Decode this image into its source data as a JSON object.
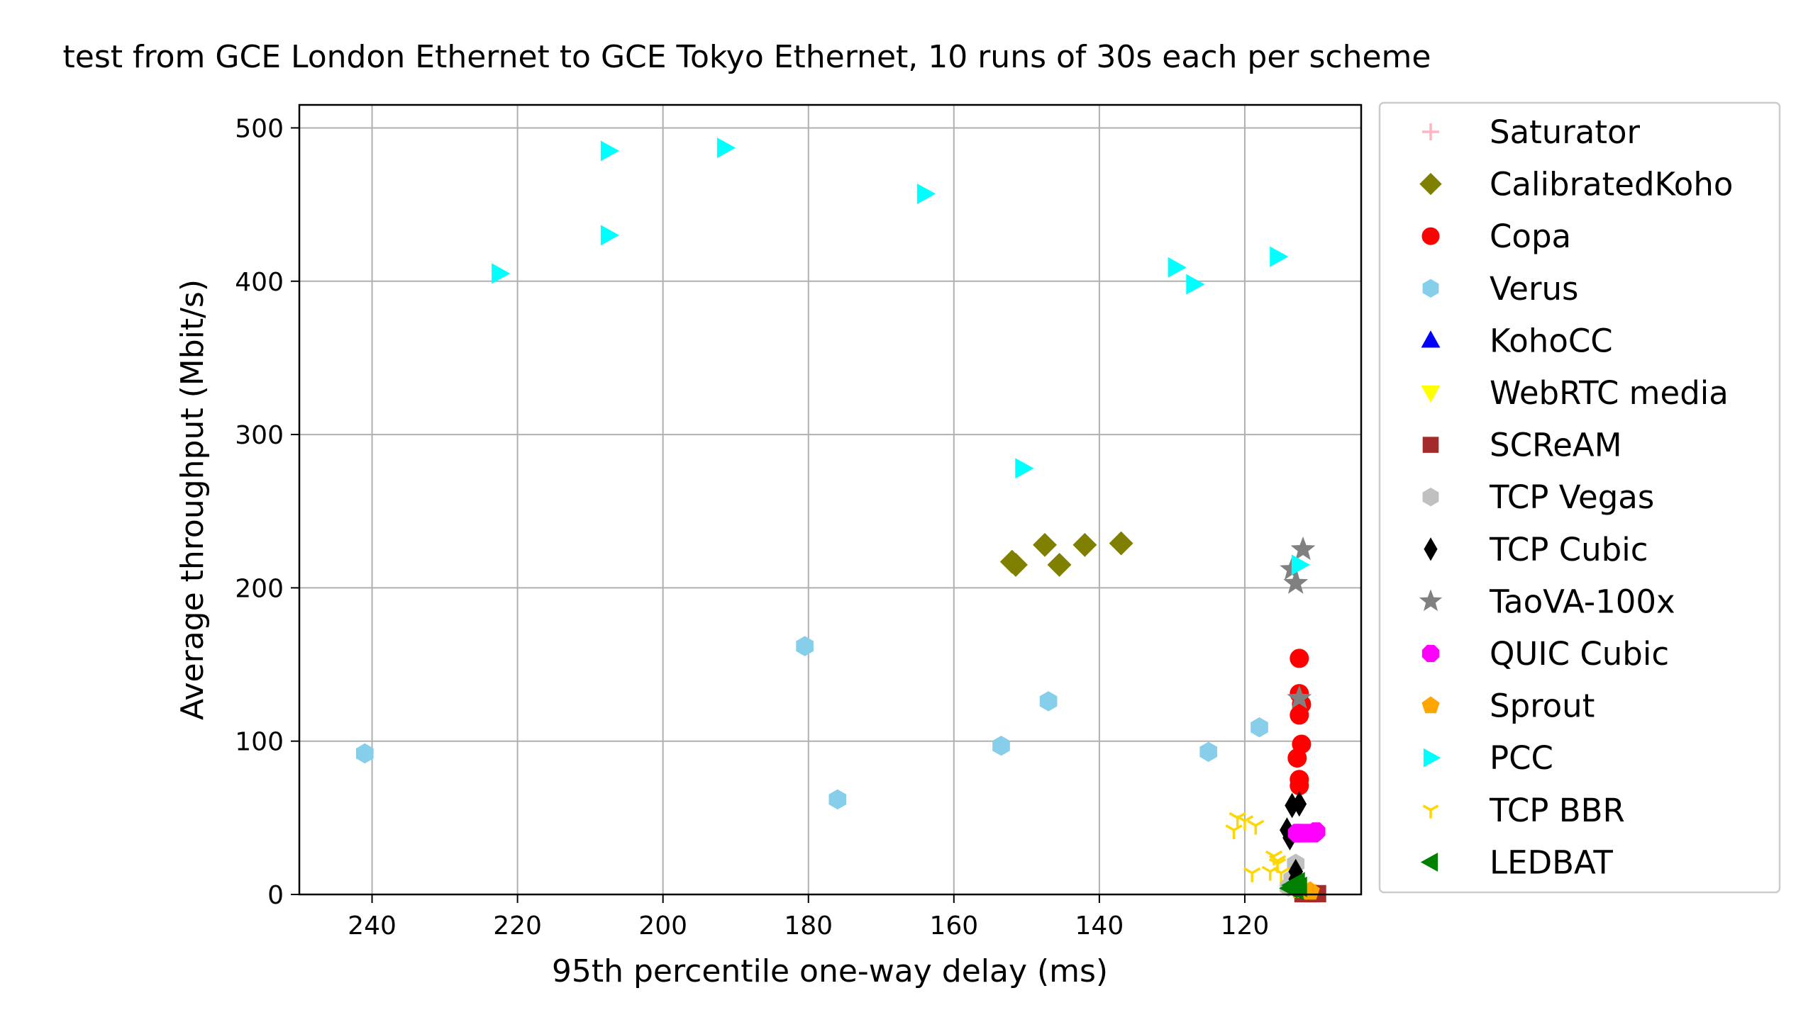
{
  "chart_data": {
    "type": "scatter",
    "title": "test from GCE London Ethernet to GCE Tokyo Ethernet, 10 runs of 30s each per scheme",
    "xlabel": "95th percentile one-way delay (ms)",
    "ylabel": "Average throughput (Mbit/s)",
    "xlim": [
      250,
      104
    ],
    "x_inverted": true,
    "ylim": [
      0,
      515
    ],
    "xticks": [
      240,
      220,
      200,
      180,
      160,
      140,
      120
    ],
    "yticks": [
      0,
      100,
      200,
      300,
      400,
      500
    ],
    "grid": true,
    "legend_position": "outside-right",
    "series": [
      {
        "name": "Saturator",
        "marker": "plus",
        "color": "#ffb6c1",
        "points": []
      },
      {
        "name": "CalibratedKoho",
        "marker": "diamond",
        "color": "#808000",
        "points": [
          [
            152,
            217
          ],
          [
            151.5,
            215
          ],
          [
            147.5,
            228
          ],
          [
            145.5,
            215
          ],
          [
            142,
            228
          ],
          [
            137,
            229
          ]
        ]
      },
      {
        "name": "Copa",
        "marker": "circle",
        "color": "#ff0000",
        "points": [
          [
            112.5,
            154
          ],
          [
            112.5,
            131
          ],
          [
            112.2,
            124
          ],
          [
            112.5,
            117
          ],
          [
            112.2,
            98
          ],
          [
            112.8,
            89
          ],
          [
            112.5,
            75
          ],
          [
            112.5,
            71
          ]
        ]
      },
      {
        "name": "Verus",
        "marker": "hexagon",
        "color": "#87ceeb",
        "points": [
          [
            241,
            92
          ],
          [
            180.5,
            162
          ],
          [
            176,
            62
          ],
          [
            153.5,
            97
          ],
          [
            147,
            126
          ],
          [
            125,
            93
          ],
          [
            118,
            109
          ]
        ]
      },
      {
        "name": "KohoCC",
        "marker": "triangle-up",
        "color": "#0000ff",
        "points": []
      },
      {
        "name": "WebRTC media",
        "marker": "triangle-down",
        "color": "#ffff00",
        "points": [
          [
            112.5,
            3
          ],
          [
            111.5,
            2
          ]
        ]
      },
      {
        "name": "SCReAM",
        "marker": "square",
        "color": "#a52a2a",
        "points": [
          [
            110,
            0.5
          ],
          [
            111,
            0.5
          ],
          [
            112,
            0.5
          ]
        ]
      },
      {
        "name": "TCP Vegas",
        "marker": "hexagon",
        "color": "#c0c0c0",
        "points": [
          [
            113,
            20
          ],
          [
            113.5,
            10
          ],
          [
            114,
            5
          ]
        ]
      },
      {
        "name": "TCP Cubic",
        "marker": "thin-diamond",
        "color": "#000000",
        "points": [
          [
            113.5,
            58
          ],
          [
            112.5,
            59
          ],
          [
            114.2,
            42
          ],
          [
            113.8,
            37
          ],
          [
            113,
            15
          ],
          [
            113,
            10
          ]
        ]
      },
      {
        "name": "TaoVA-100x",
        "marker": "star",
        "color": "#808080",
        "points": [
          [
            112,
            225
          ],
          [
            113.5,
            212
          ],
          [
            113,
            203
          ],
          [
            112.5,
            128
          ]
        ]
      },
      {
        "name": "QUIC Cubic",
        "marker": "octagon",
        "color": "#ff00ff",
        "points": [
          [
            112.5,
            40
          ],
          [
            111.5,
            40
          ],
          [
            110.5,
            40
          ],
          [
            112.8,
            40
          ],
          [
            110.2,
            41
          ]
        ]
      },
      {
        "name": "Sprout",
        "marker": "pentagon",
        "color": "#ffa500",
        "points": [
          [
            112.5,
            3
          ],
          [
            111,
            2
          ]
        ]
      },
      {
        "name": "PCC",
        "marker": "triangle-right",
        "color": "#00ffff",
        "points": [
          [
            222.5,
            405
          ],
          [
            207.5,
            485
          ],
          [
            207.5,
            430
          ],
          [
            191.5,
            487
          ],
          [
            164,
            457
          ],
          [
            150.5,
            278
          ],
          [
            129.5,
            409
          ],
          [
            127,
            398
          ],
          [
            115.5,
            416
          ],
          [
            112.5,
            215
          ]
        ]
      },
      {
        "name": "TCP BBR",
        "marker": "tri-down",
        "color": "#ffd700",
        "points": [
          [
            121,
            50
          ],
          [
            120,
            48
          ],
          [
            121.5,
            42
          ],
          [
            118.5,
            45
          ],
          [
            116,
            25
          ],
          [
            115.5,
            20
          ],
          [
            116.5,
            15
          ],
          [
            115,
            14
          ],
          [
            119,
            14
          ],
          [
            115.5,
            22
          ]
        ]
      },
      {
        "name": "LEDBAT",
        "marker": "triangle-left",
        "color": "#008000",
        "points": [
          [
            113.5,
            6
          ],
          [
            113,
            3
          ],
          [
            112.5,
            5
          ],
          [
            113.8,
            4
          ],
          [
            112.8,
            8
          ]
        ]
      }
    ]
  }
}
